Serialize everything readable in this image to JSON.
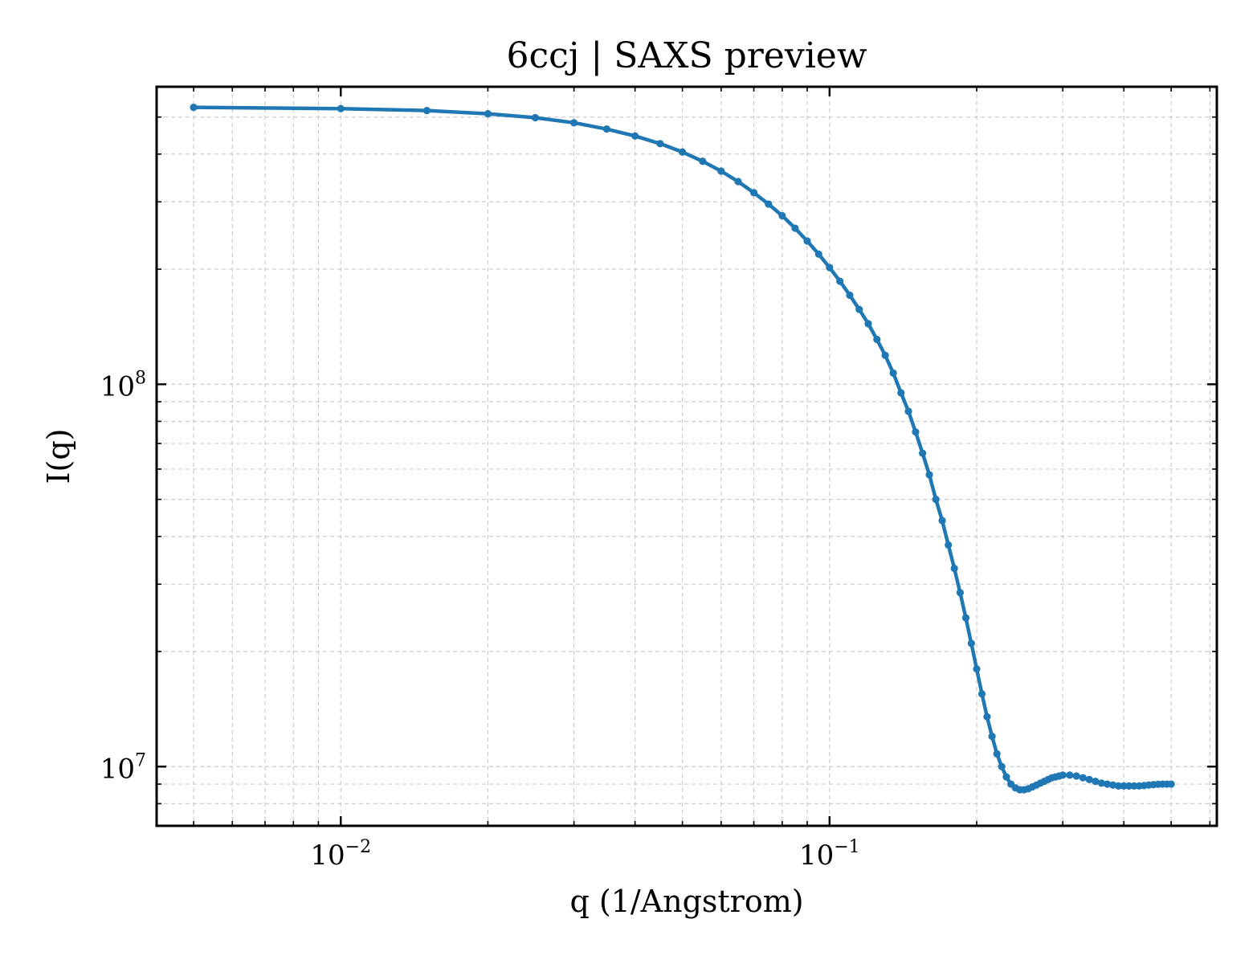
{
  "chart_data": {
    "type": "line",
    "title": "6ccj | SAXS preview",
    "xlabel": "q (1/Angstrom)",
    "ylabel": "I(q)",
    "xscale": "log",
    "yscale": "log",
    "xlim": [
      0.0042,
      0.62
    ],
    "ylim": [
      7000000,
      600000000
    ],
    "grid": true,
    "legend": "none",
    "color": "#1f77b4",
    "x_ticks": [
      {
        "value": 0.01,
        "base": "10",
        "exp": "−2"
      },
      {
        "value": 0.1,
        "base": "10",
        "exp": "−1"
      }
    ],
    "y_ticks": [
      {
        "value": 10000000,
        "base": "10",
        "exp": "7"
      },
      {
        "value": 100000000,
        "base": "10",
        "exp": "8"
      }
    ],
    "series": [
      {
        "x": [
          0.005,
          0.01,
          0.015,
          0.02,
          0.025,
          0.03,
          0.035,
          0.04,
          0.045,
          0.05,
          0.055,
          0.06,
          0.065,
          0.07,
          0.075,
          0.08,
          0.085,
          0.09,
          0.095,
          0.1,
          0.105,
          0.11,
          0.115,
          0.12,
          0.125,
          0.13,
          0.135,
          0.14,
          0.145,
          0.15,
          0.155,
          0.16,
          0.165,
          0.17,
          0.175,
          0.18,
          0.185,
          0.19,
          0.195,
          0.2,
          0.205,
          0.21,
          0.215,
          0.22,
          0.225,
          0.23,
          0.235,
          0.24,
          0.245,
          0.25,
          0.255,
          0.26,
          0.265,
          0.27,
          0.275,
          0.28,
          0.285,
          0.29,
          0.295,
          0.3,
          0.31,
          0.32,
          0.33,
          0.34,
          0.35,
          0.36,
          0.37,
          0.38,
          0.39,
          0.4,
          0.41,
          0.42,
          0.43,
          0.44,
          0.45,
          0.46,
          0.47,
          0.48,
          0.49,
          0.5
        ],
        "y": [
          530000000,
          526000000,
          520000000,
          510000000,
          498000000,
          483000000,
          465000000,
          446000000,
          426000000,
          405000000,
          383000000,
          361000000,
          339000000,
          317000000,
          296000000,
          276000000,
          256000000,
          237000000,
          219000000,
          202000000,
          186000000,
          171000000,
          157000000,
          144000000,
          131000000,
          119000000,
          107000000,
          95000000,
          85000000,
          75000000,
          66000000,
          58000000,
          50000000,
          44000000,
          38000000,
          33000000,
          28500000,
          24500000,
          21000000,
          18000000,
          15500000,
          13500000,
          12000000,
          10800000,
          10000000,
          9400000,
          9000000,
          8800000,
          8700000,
          8700000,
          8750000,
          8850000,
          8950000,
          9050000,
          9150000,
          9250000,
          9350000,
          9400000,
          9450000,
          9500000,
          9500000,
          9450000,
          9350000,
          9250000,
          9150000,
          9050000,
          9000000,
          8950000,
          8900000,
          8900000,
          8900000,
          8900000,
          8900000,
          8920000,
          8950000,
          8970000,
          8990000,
          9000000,
          9000000,
          9000000
        ]
      }
    ]
  }
}
